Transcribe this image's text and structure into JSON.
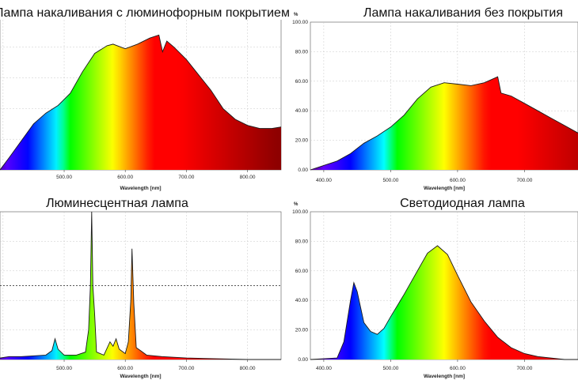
{
  "chart_data": [
    {
      "type": "area",
      "title": "Лампа накаливания с люминофорным покрытием",
      "xlabel": "Wavelength [nm]",
      "ylabel": "",
      "xlim": [
        395,
        855
      ],
      "ylim": [
        0,
        100
      ],
      "x_ticks": [
        "500.00",
        "600.00",
        "700.00",
        "800.00"
      ],
      "y_ticks": [],
      "grid": true,
      "points": [
        [
          395,
          0
        ],
        [
          410,
          8
        ],
        [
          430,
          19
        ],
        [
          450,
          30
        ],
        [
          470,
          37
        ],
        [
          490,
          42
        ],
        [
          510,
          50
        ],
        [
          530,
          64
        ],
        [
          550,
          76
        ],
        [
          570,
          81
        ],
        [
          580,
          82
        ],
        [
          600,
          79
        ],
        [
          620,
          82
        ],
        [
          640,
          86
        ],
        [
          655,
          88
        ],
        [
          661,
          77
        ],
        [
          668,
          84
        ],
        [
          680,
          80
        ],
        [
          700,
          72
        ],
        [
          720,
          62
        ],
        [
          740,
          52
        ],
        [
          760,
          40
        ],
        [
          780,
          33
        ],
        [
          800,
          29
        ],
        [
          820,
          27
        ],
        [
          840,
          27
        ],
        [
          855,
          28
        ]
      ]
    },
    {
      "type": "area",
      "title": "Лампа накаливания без покрытия",
      "xlabel": "Wavelength [nm]",
      "ylabel": "%",
      "xlim": [
        380,
        780
      ],
      "ylim": [
        0,
        100
      ],
      "x_ticks": [
        "400.00",
        "500.00",
        "600.00",
        "700.00"
      ],
      "y_ticks": [
        "0.00",
        "20.00",
        "40.00",
        "60.00",
        "80.00",
        "100.00"
      ],
      "grid": true,
      "points": [
        [
          380,
          0
        ],
        [
          400,
          3
        ],
        [
          420,
          6
        ],
        [
          440,
          11
        ],
        [
          460,
          18
        ],
        [
          480,
          23
        ],
        [
          500,
          29
        ],
        [
          520,
          37
        ],
        [
          540,
          48
        ],
        [
          560,
          56
        ],
        [
          580,
          59
        ],
        [
          600,
          58
        ],
        [
          620,
          57
        ],
        [
          640,
          59
        ],
        [
          660,
          63
        ],
        [
          665,
          52
        ],
        [
          680,
          50
        ],
        [
          700,
          45
        ],
        [
          720,
          40
        ],
        [
          740,
          35
        ],
        [
          760,
          30
        ],
        [
          780,
          25
        ]
      ]
    },
    {
      "type": "area",
      "title": "Люминесцентная лампа",
      "xlabel": "Wavelength [nm]",
      "ylabel": "",
      "xlim": [
        395,
        855
      ],
      "ylim": [
        0,
        100
      ],
      "x_ticks": [
        "500.00",
        "600.00",
        "700.00",
        "800.00"
      ],
      "y_ticks": [],
      "grid": true,
      "dashed_line_y": 50,
      "points": [
        [
          395,
          1
        ],
        [
          410,
          2
        ],
        [
          430,
          2
        ],
        [
          470,
          3
        ],
        [
          480,
          6
        ],
        [
          485,
          14
        ],
        [
          490,
          7
        ],
        [
          500,
          3
        ],
        [
          520,
          3
        ],
        [
          535,
          5
        ],
        [
          540,
          20
        ],
        [
          543,
          50
        ],
        [
          545,
          100
        ],
        [
          547,
          50
        ],
        [
          550,
          30
        ],
        [
          553,
          5
        ],
        [
          565,
          3
        ],
        [
          575,
          12
        ],
        [
          580,
          9
        ],
        [
          585,
          14
        ],
        [
          590,
          7
        ],
        [
          600,
          4
        ],
        [
          605,
          12
        ],
        [
          609,
          40
        ],
        [
          611,
          75
        ],
        [
          614,
          38
        ],
        [
          618,
          8
        ],
        [
          625,
          6
        ],
        [
          635,
          3
        ],
        [
          660,
          2
        ],
        [
          700,
          1
        ],
        [
          800,
          0
        ],
        [
          855,
          0
        ]
      ]
    },
    {
      "type": "area",
      "title": "Светодиодная лампа",
      "xlabel": "Wavelength [nm]",
      "ylabel": "%",
      "xlim": [
        380,
        780
      ],
      "ylim": [
        0,
        100
      ],
      "x_ticks": [
        "400.00",
        "500.00",
        "600.00",
        "700.00"
      ],
      "y_ticks": [
        "0.00",
        "20.00",
        "40.00",
        "60.00",
        "80.00",
        "100.00"
      ],
      "grid": true,
      "points": [
        [
          380,
          0
        ],
        [
          420,
          1
        ],
        [
          430,
          12
        ],
        [
          440,
          40
        ],
        [
          445,
          52
        ],
        [
          450,
          46
        ],
        [
          460,
          25
        ],
        [
          470,
          19
        ],
        [
          480,
          17
        ],
        [
          490,
          21
        ],
        [
          500,
          29
        ],
        [
          520,
          44
        ],
        [
          540,
          60
        ],
        [
          555,
          72
        ],
        [
          570,
          77
        ],
        [
          585,
          71
        ],
        [
          600,
          57
        ],
        [
          620,
          39
        ],
        [
          640,
          26
        ],
        [
          660,
          15
        ],
        [
          680,
          8
        ],
        [
          700,
          4
        ],
        [
          720,
          2
        ],
        [
          760,
          0
        ],
        [
          780,
          0
        ]
      ]
    }
  ]
}
